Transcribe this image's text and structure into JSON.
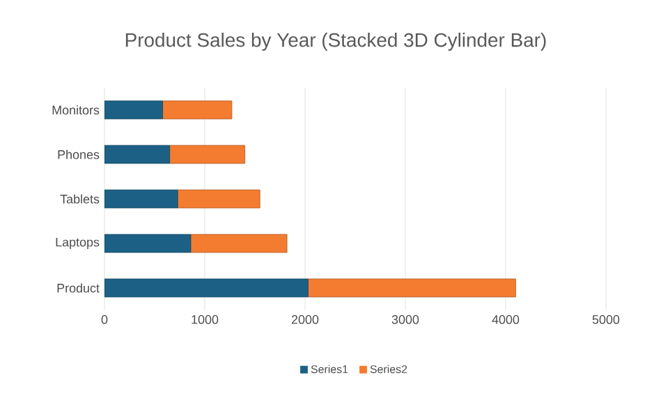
{
  "chart_data": {
    "type": "bar",
    "orientation": "horizontal",
    "stacked": true,
    "title": "Product Sales by Year (Stacked 3D Cylinder Bar)",
    "categories": [
      "Monitors",
      "Phones",
      "Tablets",
      "Laptops",
      "Product"
    ],
    "series": [
      {
        "name": "Series1",
        "color": "#1c6185",
        "values": [
          580,
          650,
          730,
          860,
          2030
        ]
      },
      {
        "name": "Series2",
        "color": "#f47c30",
        "values": [
          690,
          750,
          820,
          960,
          2070
        ]
      }
    ],
    "xlim": [
      0,
      5000
    ],
    "xticks": [
      0,
      1000,
      2000,
      3000,
      4000,
      5000
    ],
    "grid": "x",
    "legend": "bottom"
  }
}
